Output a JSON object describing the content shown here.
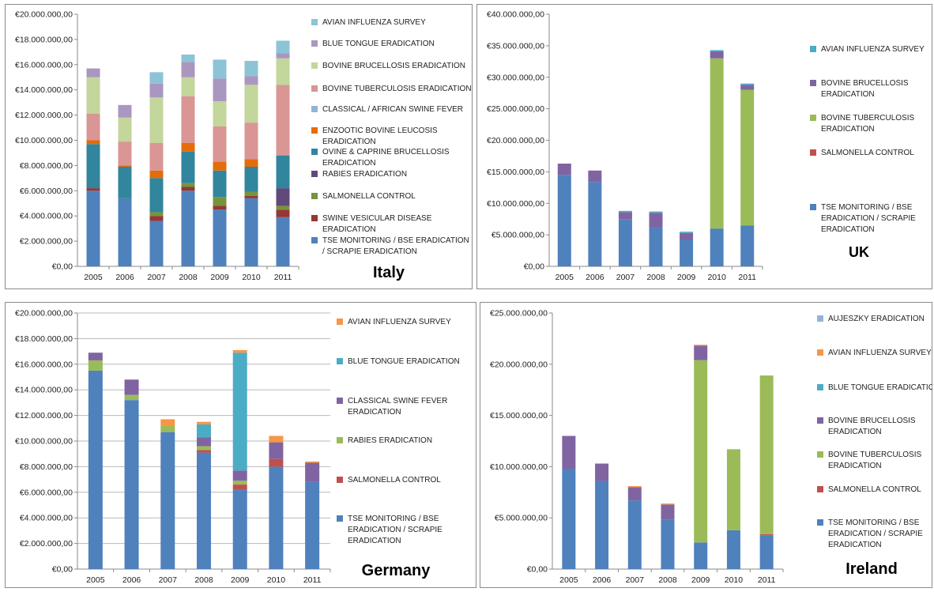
{
  "colors": {
    "avian_influenza": "#8DC3D6",
    "blue_tongue_italy": "#A997C0",
    "bovine_brucellosis_italy": "#C3D69B",
    "bovine_tuberculosis_italy": "#D99694",
    "classical_african_swine_fever": "#95B3D7",
    "enzootic_bovine_leucosis": "#E46C0A",
    "ovine_caprine_brucellosis": "#31859C",
    "rabies": "#604A7B",
    "salmonella": "#77933C",
    "swine_vesicular": "#953735",
    "tse": "#4F81BD",
    "uk_avian": "#4BACC6",
    "uk_brucellosis": "#8064A2",
    "uk_tuberculosis": "#9BBB59",
    "uk_salmonella": "#C0504D",
    "de_avian": "#F79646",
    "de_bluetongue": "#4BACC6",
    "de_csf": "#8064A2",
    "de_rabies": "#9BBB59",
    "de_salmonella": "#C0504D",
    "ie_aujeszky": "#95B3D7",
    "ie_avian": "#F79646",
    "ie_bluetongue": "#4BACC6",
    "ie_brucellosis": "#8064A2",
    "ie_tuberculosis": "#9BBB59",
    "ie_salmonella": "#C0504D"
  },
  "chart_data": [
    {
      "type": "bar",
      "stacked": true,
      "country": "Italy",
      "categories": [
        "2005",
        "2006",
        "2007",
        "2008",
        "2009",
        "2010",
        "2011"
      ],
      "ylim": [
        0,
        20000000
      ],
      "ytick_step": 2000000,
      "yticks": [
        "€0,00",
        "€2.000.000,00",
        "€4.000.000,00",
        "€6.000.000,00",
        "€8.000.000,00",
        "€10.000.000,00",
        "€12.000.000,00",
        "€14.000.000,00",
        "€16.000.000,00",
        "€18.000.000,00",
        "€20.000.000,00"
      ],
      "grid": false,
      "legend_position": "right",
      "series": [
        {
          "name": "TSE MONITORING / BSE ERADICATION / SCRAPIE ERADICATION",
          "color_key": "tse",
          "values": [
            6000000,
            5400000,
            3600000,
            6000000,
            4500000,
            5400000,
            3900000
          ]
        },
        {
          "name": "SWINE VESICULAR DISEASE ERADICATION",
          "color_key": "swine_vesicular",
          "values": [
            200000,
            0,
            400000,
            300000,
            300000,
            200000,
            600000
          ]
        },
        {
          "name": "SALMONELLA CONTROL",
          "color_key": "salmonella",
          "values": [
            0,
            0,
            300000,
            300000,
            700000,
            300000,
            300000
          ]
        },
        {
          "name": "RABIES ERADICATION",
          "color_key": "rabies",
          "values": [
            0,
            0,
            0,
            0,
            0,
            0,
            1400000
          ]
        },
        {
          "name": "OVINE & CAPRINE BRUCELLOSIS ERADICATION",
          "color_key": "ovine_caprine_brucellosis",
          "values": [
            3500000,
            2500000,
            2700000,
            2500000,
            2100000,
            2000000,
            2600000
          ]
        },
        {
          "name": "ENZOOTIC BOVINE LEUCOSIS ERADICATION",
          "color_key": "enzootic_bovine_leucosis",
          "values": [
            300000,
            100000,
            600000,
            700000,
            700000,
            600000,
            0
          ]
        },
        {
          "name": "CLASSICAL / AFRICAN SWINE FEVER",
          "color_key": "classical_african_swine_fever",
          "values": [
            0,
            0,
            0,
            0,
            0,
            0,
            0
          ]
        },
        {
          "name": "BOVINE TUBERCULOSIS ERADICATION",
          "color_key": "bovine_tuberculosis_italy",
          "values": [
            2100000,
            1900000,
            2200000,
            3700000,
            2800000,
            2900000,
            5600000
          ]
        },
        {
          "name": "BOVINE BRUCELLOSIS ERADICATION",
          "color_key": "bovine_brucellosis_italy",
          "values": [
            2900000,
            1900000,
            3600000,
            1500000,
            2000000,
            3000000,
            2100000
          ]
        },
        {
          "name": "BLUE TONGUE ERADICATION",
          "color_key": "blue_tongue_italy",
          "values": [
            700000,
            1000000,
            1100000,
            1200000,
            1800000,
            700000,
            400000
          ]
        },
        {
          "name": "AVIAN INFLUENZA SURVEY",
          "color_key": "avian_influenza",
          "values": [
            0,
            0,
            900000,
            600000,
            1500000,
            1200000,
            1000000
          ]
        }
      ],
      "legend_entries": [
        [
          "AVIAN INFLUENZA SURVEY"
        ],
        [
          "BLUE TONGUE ERADICATION"
        ],
        [
          "BOVINE BRUCELLOSIS ERADICATION"
        ],
        [
          "BOVINE TUBERCULOSIS ERADICATION"
        ],
        [
          "CLASSICAL / AFRICAN SWINE FEVER"
        ],
        [
          "ENZOOTIC BOVINE LEUCOSIS",
          "ERADICATION"
        ],
        [
          "OVINE & CAPRINE BRUCELLOSIS",
          "ERADICATION"
        ],
        [
          "RABIES ERADICATION"
        ],
        [
          "SALMONELLA CONTROL"
        ],
        [
          "SWINE VESICULAR DISEASE",
          "ERADICATION"
        ],
        [
          "TSE MONITORING / BSE ERADICATION",
          "/ SCRAPIE ERADICATION"
        ]
      ],
      "legend_colors": [
        "avian_influenza",
        "blue_tongue_italy",
        "bovine_brucellosis_italy",
        "bovine_tuberculosis_italy",
        "classical_african_swine_fever",
        "enzootic_bovine_leucosis",
        "ovine_caprine_brucellosis",
        "rabies",
        "salmonella",
        "swine_vesicular",
        "tse"
      ]
    },
    {
      "type": "bar",
      "stacked": true,
      "country": "UK",
      "categories": [
        "2005",
        "2006",
        "2007",
        "2008",
        "2009",
        "2010",
        "2011"
      ],
      "ylim": [
        0,
        40000000
      ],
      "ytick_step": 5000000,
      "yticks": [
        "€0,00",
        "€5.000.000,00",
        "€10.000.000,00",
        "€15.000.000,00",
        "€20.000.000,00",
        "€25.000.000,00",
        "€30.000.000,00",
        "€35.000.000,00",
        "€40.000.000,00"
      ],
      "grid": false,
      "legend_position": "right",
      "series": [
        {
          "name": "TSE MONITORING / BSE ERADICATION / SCRAPIE ERADICATION",
          "color_key": "tse",
          "values": [
            14500000,
            13400000,
            7500000,
            6200000,
            4200000,
            6000000,
            6500000
          ]
        },
        {
          "name": "SALMONELLA CONTROL",
          "color_key": "uk_salmonella",
          "values": [
            0,
            0,
            0,
            0,
            0,
            0,
            0
          ]
        },
        {
          "name": "BOVINE TUBERCULOSIS ERADICATION",
          "color_key": "uk_tuberculosis",
          "values": [
            0,
            0,
            0,
            0,
            0,
            27000000,
            21500000
          ]
        },
        {
          "name": "BOVINE BRUCELLOSIS ERADICATION",
          "color_key": "uk_brucellosis",
          "values": [
            1800000,
            1800000,
            1100000,
            2300000,
            1100000,
            1100000,
            800000
          ]
        },
        {
          "name": "AVIAN INFLUENZA SURVEY",
          "color_key": "uk_avian",
          "values": [
            0,
            0,
            200000,
            200000,
            200000,
            200000,
            200000
          ]
        }
      ],
      "legend_entries": [
        [
          "AVIAN INFLUENZA SURVEY"
        ],
        [
          "BOVINE BRUCELLOSIS",
          "ERADICATION"
        ],
        [
          "BOVINE TUBERCULOSIS",
          "ERADICATION"
        ],
        [
          "SALMONELLA CONTROL"
        ],
        [
          "TSE MONITORING / BSE",
          "ERADICATION / SCRAPIE",
          "ERADICATION"
        ]
      ],
      "legend_colors": [
        "uk_avian",
        "uk_brucellosis",
        "uk_tuberculosis",
        "uk_salmonella",
        "tse"
      ]
    },
    {
      "type": "bar",
      "stacked": true,
      "country": "Germany",
      "categories": [
        "2005",
        "2006",
        "2007",
        "2008",
        "2009",
        "2010",
        "2011"
      ],
      "ylim": [
        0,
        20000000
      ],
      "ytick_step": 2000000,
      "yticks": [
        "€0,00",
        "€2.000.000,00",
        "€4.000.000,00",
        "€6.000.000,00",
        "€8.000.000,00",
        "€10.000.000,00",
        "€12.000.000,00",
        "€14.000.000,00",
        "€16.000.000,00",
        "€18.000.000,00",
        "€20.000.000,00"
      ],
      "grid": true,
      "legend_position": "right",
      "series": [
        {
          "name": "TSE MONITORING / BSE ERADICATION / SCRAPIE ERADICATION",
          "color_key": "tse",
          "values": [
            15500000,
            13200000,
            10700000,
            9100000,
            6200000,
            8000000,
            6800000
          ]
        },
        {
          "name": "SALMONELLA CONTROL",
          "color_key": "de_salmonella",
          "values": [
            0,
            0,
            0,
            200000,
            400000,
            600000,
            0
          ]
        },
        {
          "name": "RABIES ERADICATION",
          "color_key": "de_rabies",
          "values": [
            800000,
            400000,
            500000,
            300000,
            300000,
            0,
            0
          ]
        },
        {
          "name": "CLASSICAL SWINE FEVER ERADICATION",
          "color_key": "de_csf",
          "values": [
            600000,
            1200000,
            0,
            700000,
            800000,
            1300000,
            1500000
          ]
        },
        {
          "name": "BLUE TONGUE ERADICATION",
          "color_key": "de_bluetongue",
          "values": [
            0,
            0,
            0,
            1000000,
            9200000,
            0,
            0
          ]
        },
        {
          "name": "AVIAN INFLUENZA SURVEY",
          "color_key": "de_avian",
          "values": [
            0,
            0,
            500000,
            200000,
            200000,
            500000,
            100000
          ]
        }
      ],
      "legend_entries": [
        [
          "AVIAN INFLUENZA SURVEY"
        ],
        [
          "BLUE TONGUE ERADICATION"
        ],
        [
          "CLASSICAL SWINE FEVER",
          "ERADICATION"
        ],
        [
          "RABIES ERADICATION"
        ],
        [
          "SALMONELLA CONTROL"
        ],
        [
          "TSE MONITORING / BSE",
          "ERADICATION / SCRAPIE",
          "ERADICATION"
        ]
      ],
      "legend_colors": [
        "de_avian",
        "de_bluetongue",
        "de_csf",
        "de_rabies",
        "de_salmonella",
        "tse"
      ]
    },
    {
      "type": "bar",
      "stacked": true,
      "country": "Ireland",
      "categories": [
        "2005",
        "2006",
        "2007",
        "2008",
        "2009",
        "2010",
        "2011"
      ],
      "ylim": [
        0,
        25000000
      ],
      "ytick_step": 5000000,
      "yticks": [
        "€0,00",
        "€5.000.000,00",
        "€10.000.000,00",
        "€15.000.000,00",
        "€20.000.000,00",
        "€25.000.000,00"
      ],
      "grid": false,
      "legend_position": "right",
      "series": [
        {
          "name": "TSE MONITORING / BSE ERADICATION / SCRAPIE ERADICATION",
          "color_key": "tse",
          "values": [
            9800000,
            8600000,
            6700000,
            4800000,
            2600000,
            3800000,
            3300000
          ]
        },
        {
          "name": "SALMONELLA CONTROL",
          "color_key": "ie_salmonella",
          "values": [
            0,
            0,
            0,
            0,
            0,
            0,
            100000
          ]
        },
        {
          "name": "BOVINE TUBERCULOSIS ERADICATION",
          "color_key": "ie_tuberculosis",
          "values": [
            0,
            0,
            0,
            0,
            17800000,
            7900000,
            15500000
          ]
        },
        {
          "name": "BOVINE BRUCELLOSIS ERADICATION",
          "color_key": "ie_brucellosis",
          "values": [
            3200000,
            1700000,
            1300000,
            1500000,
            1400000,
            0,
            0
          ]
        },
        {
          "name": "BLUE TONGUE ERADICATION",
          "color_key": "ie_bluetongue",
          "values": [
            0,
            0,
            0,
            0,
            0,
            0,
            0
          ]
        },
        {
          "name": "AVIAN INFLUENZA SURVEY",
          "color_key": "ie_avian",
          "values": [
            0,
            0,
            100000,
            100000,
            100000,
            0,
            0
          ]
        },
        {
          "name": "AUJESZKY ERADICATION",
          "color_key": "ie_aujeszky",
          "values": [
            0,
            0,
            0,
            0,
            0,
            0,
            0
          ]
        }
      ],
      "legend_entries": [
        [
          "AUJESZKY ERADICATION"
        ],
        [
          "AVIAN INFLUENZA SURVEY"
        ],
        [
          "BLUE TONGUE ERADICATION"
        ],
        [
          "BOVINE BRUCELLOSIS",
          "ERADICATION"
        ],
        [
          "BOVINE TUBERCULOSIS",
          "ERADICATION"
        ],
        [
          "SALMONELLA CONTROL"
        ],
        [
          "TSE MONITORING / BSE",
          "ERADICATION / SCRAPIE",
          "ERADICATION"
        ]
      ],
      "legend_colors": [
        "ie_aujeszky",
        "ie_avian",
        "ie_bluetongue",
        "ie_brucellosis",
        "ie_tuberculosis",
        "ie_salmonella",
        "tse"
      ]
    }
  ]
}
